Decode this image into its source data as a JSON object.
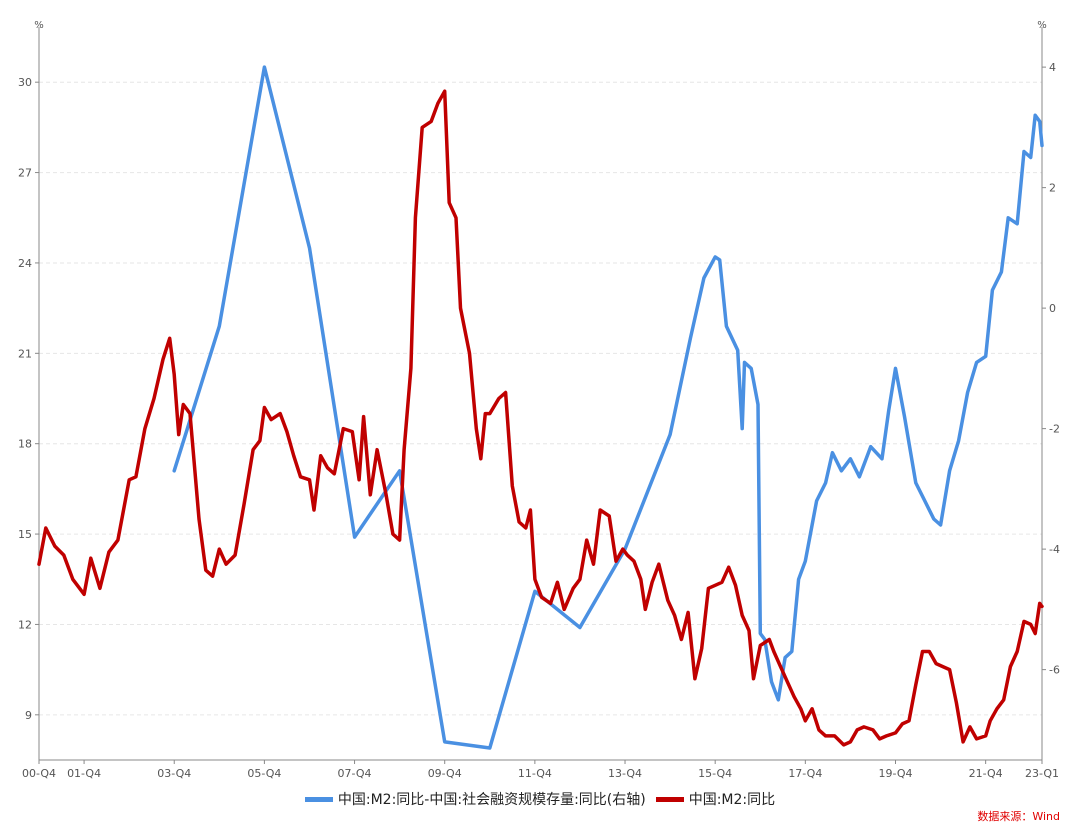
{
  "legend": {
    "series_blue": "中国:M2:同比-中国:社会融资规模存量:同比(右轴)",
    "series_red": "中国:M2:同比"
  },
  "source": "数据来源：Wind",
  "colors": {
    "blue": "#4A90E2",
    "red": "#C00000",
    "source": "#E00000"
  },
  "chart_data": {
    "type": "line",
    "x": {
      "domain": [
        2000.75,
        2023.0
      ],
      "ticks": [
        {
          "t": 2000.75,
          "label": "00-Q4"
        },
        {
          "t": 2001.75,
          "label": "01-Q4"
        },
        {
          "t": 2003.75,
          "label": "03-Q4"
        },
        {
          "t": 2005.75,
          "label": "05-Q4"
        },
        {
          "t": 2007.75,
          "label": "07-Q4"
        },
        {
          "t": 2009.75,
          "label": "09-Q4"
        },
        {
          "t": 2011.75,
          "label": "11-Q4"
        },
        {
          "t": 2013.75,
          "label": "13-Q4"
        },
        {
          "t": 2015.75,
          "label": "15-Q4"
        },
        {
          "t": 2017.75,
          "label": "17-Q4"
        },
        {
          "t": 2019.75,
          "label": "19-Q4"
        },
        {
          "t": 2021.75,
          "label": "21-Q4"
        },
        {
          "t": 2023.0,
          "label": "23-Q1"
        }
      ]
    },
    "y_left": {
      "unit": "%",
      "min": 7.5,
      "max": 31.5,
      "ticks": [
        9,
        12,
        15,
        18,
        21,
        24,
        27,
        30
      ]
    },
    "y_right": {
      "unit": "%",
      "min": -7.5,
      "max": 4.5,
      "ticks": [
        -6,
        -4,
        -2,
        0,
        2,
        4
      ]
    },
    "series": [
      {
        "name": "中国:M2:同比-中国:社会融资规模存量:同比(右轴)",
        "axis": "right",
        "color": "#4A90E2",
        "points": [
          [
            2003.75,
            -2.7
          ],
          [
            2004.75,
            -0.3
          ],
          [
            2005.75,
            4.0
          ],
          [
            2006.75,
            1.0
          ],
          [
            2007.75,
            -3.8
          ],
          [
            2008.75,
            -2.7
          ],
          [
            2009.75,
            -7.2
          ],
          [
            2010.75,
            -7.3
          ],
          [
            2011.75,
            -4.7
          ],
          [
            2012.75,
            -5.3
          ],
          [
            2013.75,
            -4.0
          ],
          [
            2014.75,
            -2.1
          ],
          [
            2015.2,
            -0.5
          ],
          [
            2015.5,
            0.5
          ],
          [
            2015.75,
            0.85
          ],
          [
            2015.85,
            0.8
          ],
          [
            2016.0,
            -0.3
          ],
          [
            2016.25,
            -0.7
          ],
          [
            2016.35,
            -2.0
          ],
          [
            2016.4,
            -0.9
          ],
          [
            2016.55,
            -1.0
          ],
          [
            2016.7,
            -1.6
          ],
          [
            2016.75,
            -5.4
          ],
          [
            2016.85,
            -5.5
          ],
          [
            2017.0,
            -6.2
          ],
          [
            2017.15,
            -6.5
          ],
          [
            2017.3,
            -5.8
          ],
          [
            2017.45,
            -5.7
          ],
          [
            2017.6,
            -4.5
          ],
          [
            2017.75,
            -4.2
          ],
          [
            2017.9,
            -3.6
          ],
          [
            2018.0,
            -3.2
          ],
          [
            2018.2,
            -2.9
          ],
          [
            2018.35,
            -2.4
          ],
          [
            2018.55,
            -2.7
          ],
          [
            2018.75,
            -2.5
          ],
          [
            2018.95,
            -2.8
          ],
          [
            2019.2,
            -2.3
          ],
          [
            2019.45,
            -2.5
          ],
          [
            2019.6,
            -1.7
          ],
          [
            2019.75,
            -1.0
          ],
          [
            2019.95,
            -1.8
          ],
          [
            2020.2,
            -2.9
          ],
          [
            2020.4,
            -3.2
          ],
          [
            2020.6,
            -3.5
          ],
          [
            2020.75,
            -3.6
          ],
          [
            2020.95,
            -2.7
          ],
          [
            2021.15,
            -2.2
          ],
          [
            2021.35,
            -1.4
          ],
          [
            2021.55,
            -0.9
          ],
          [
            2021.75,
            -0.8
          ],
          [
            2021.9,
            0.3
          ],
          [
            2022.1,
            0.6
          ],
          [
            2022.25,
            1.5
          ],
          [
            2022.45,
            1.4
          ],
          [
            2022.6,
            2.6
          ],
          [
            2022.75,
            2.5
          ],
          [
            2022.85,
            3.2
          ],
          [
            2022.95,
            3.1
          ],
          [
            2023.0,
            2.7
          ]
        ]
      },
      {
        "name": "中国:M2:同比",
        "axis": "left",
        "color": "#C00000",
        "points": [
          [
            2000.75,
            14.0
          ],
          [
            2000.9,
            15.2
          ],
          [
            2001.1,
            14.6
          ],
          [
            2001.3,
            14.3
          ],
          [
            2001.5,
            13.5
          ],
          [
            2001.75,
            13.0
          ],
          [
            2001.9,
            14.2
          ],
          [
            2002.1,
            13.2
          ],
          [
            2002.3,
            14.4
          ],
          [
            2002.5,
            14.8
          ],
          [
            2002.75,
            16.8
          ],
          [
            2002.9,
            16.9
          ],
          [
            2003.1,
            18.5
          ],
          [
            2003.3,
            19.5
          ],
          [
            2003.5,
            20.8
          ],
          [
            2003.65,
            21.5
          ],
          [
            2003.75,
            20.3
          ],
          [
            2003.85,
            18.3
          ],
          [
            2003.95,
            19.3
          ],
          [
            2004.1,
            19.0
          ],
          [
            2004.3,
            15.5
          ],
          [
            2004.45,
            13.8
          ],
          [
            2004.6,
            13.6
          ],
          [
            2004.75,
            14.5
          ],
          [
            2004.9,
            14.0
          ],
          [
            2005.1,
            14.3
          ],
          [
            2005.3,
            16.0
          ],
          [
            2005.5,
            17.8
          ],
          [
            2005.65,
            18.1
          ],
          [
            2005.75,
            19.2
          ],
          [
            2005.9,
            18.8
          ],
          [
            2006.1,
            19.0
          ],
          [
            2006.25,
            18.4
          ],
          [
            2006.4,
            17.6
          ],
          [
            2006.55,
            16.9
          ],
          [
            2006.75,
            16.8
          ],
          [
            2006.85,
            15.8
          ],
          [
            2007.0,
            17.6
          ],
          [
            2007.15,
            17.2
          ],
          [
            2007.3,
            17.0
          ],
          [
            2007.5,
            18.5
          ],
          [
            2007.7,
            18.4
          ],
          [
            2007.85,
            16.8
          ],
          [
            2007.95,
            18.9
          ],
          [
            2008.1,
            16.3
          ],
          [
            2008.25,
            17.8
          ],
          [
            2008.45,
            16.3
          ],
          [
            2008.6,
            15.0
          ],
          [
            2008.75,
            14.8
          ],
          [
            2008.85,
            17.8
          ],
          [
            2009.0,
            20.5
          ],
          [
            2009.1,
            25.5
          ],
          [
            2009.25,
            28.5
          ],
          [
            2009.45,
            28.7
          ],
          [
            2009.6,
            29.3
          ],
          [
            2009.75,
            29.7
          ],
          [
            2009.85,
            26.0
          ],
          [
            2010.0,
            25.5
          ],
          [
            2010.1,
            22.5
          ],
          [
            2010.3,
            21.0
          ],
          [
            2010.45,
            18.5
          ],
          [
            2010.55,
            17.5
          ],
          [
            2010.65,
            19.0
          ],
          [
            2010.75,
            19.0
          ],
          [
            2010.95,
            19.5
          ],
          [
            2011.1,
            19.7
          ],
          [
            2011.25,
            16.6
          ],
          [
            2011.4,
            15.4
          ],
          [
            2011.55,
            15.2
          ],
          [
            2011.65,
            15.8
          ],
          [
            2011.75,
            13.5
          ],
          [
            2011.9,
            12.9
          ],
          [
            2012.1,
            12.7
          ],
          [
            2012.25,
            13.4
          ],
          [
            2012.4,
            12.5
          ],
          [
            2012.6,
            13.2
          ],
          [
            2012.75,
            13.5
          ],
          [
            2012.9,
            14.8
          ],
          [
            2013.05,
            14.0
          ],
          [
            2013.2,
            15.8
          ],
          [
            2013.4,
            15.6
          ],
          [
            2013.55,
            14.1
          ],
          [
            2013.7,
            14.5
          ],
          [
            2013.8,
            14.3
          ],
          [
            2013.95,
            14.1
          ],
          [
            2014.1,
            13.5
          ],
          [
            2014.2,
            12.5
          ],
          [
            2014.35,
            13.4
          ],
          [
            2014.5,
            14.0
          ],
          [
            2014.7,
            12.8
          ],
          [
            2014.85,
            12.3
          ],
          [
            2015.0,
            11.5
          ],
          [
            2015.15,
            12.4
          ],
          [
            2015.3,
            10.2
          ],
          [
            2015.45,
            11.2
          ],
          [
            2015.6,
            13.2
          ],
          [
            2015.75,
            13.3
          ],
          [
            2015.9,
            13.4
          ],
          [
            2016.05,
            13.9
          ],
          [
            2016.2,
            13.3
          ],
          [
            2016.35,
            12.3
          ],
          [
            2016.5,
            11.8
          ],
          [
            2016.6,
            10.2
          ],
          [
            2016.75,
            11.3
          ],
          [
            2016.95,
            11.5
          ],
          [
            2017.05,
            11.1
          ],
          [
            2017.2,
            10.6
          ],
          [
            2017.35,
            10.1
          ],
          [
            2017.5,
            9.6
          ],
          [
            2017.65,
            9.2
          ],
          [
            2017.75,
            8.8
          ],
          [
            2017.9,
            9.2
          ],
          [
            2018.05,
            8.5
          ],
          [
            2018.2,
            8.3
          ],
          [
            2018.4,
            8.3
          ],
          [
            2018.6,
            8.0
          ],
          [
            2018.75,
            8.1
          ],
          [
            2018.9,
            8.5
          ],
          [
            2019.05,
            8.6
          ],
          [
            2019.25,
            8.5
          ],
          [
            2019.4,
            8.2
          ],
          [
            2019.55,
            8.3
          ],
          [
            2019.75,
            8.4
          ],
          [
            2019.9,
            8.7
          ],
          [
            2020.05,
            8.8
          ],
          [
            2020.2,
            10.0
          ],
          [
            2020.35,
            11.1
          ],
          [
            2020.5,
            11.1
          ],
          [
            2020.65,
            10.7
          ],
          [
            2020.8,
            10.6
          ],
          [
            2020.95,
            10.5
          ],
          [
            2021.1,
            9.4
          ],
          [
            2021.25,
            8.1
          ],
          [
            2021.4,
            8.6
          ],
          [
            2021.55,
            8.2
          ],
          [
            2021.75,
            8.3
          ],
          [
            2021.85,
            8.8
          ],
          [
            2022.0,
            9.2
          ],
          [
            2022.15,
            9.5
          ],
          [
            2022.3,
            10.6
          ],
          [
            2022.45,
            11.1
          ],
          [
            2022.6,
            12.1
          ],
          [
            2022.75,
            12.0
          ],
          [
            2022.85,
            11.7
          ],
          [
            2022.95,
            12.7
          ],
          [
            2023.0,
            12.6
          ]
        ]
      }
    ]
  }
}
